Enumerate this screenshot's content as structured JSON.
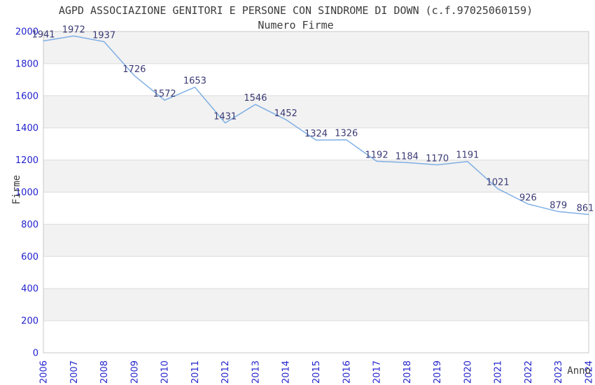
{
  "header": {
    "title": "AGPD ASSOCIAZIONE GENITORI E PERSONE CON SINDROME DI DOWN (c.f.97025060159)",
    "subtitle": "Numero Firme"
  },
  "chart_data": {
    "type": "line",
    "title": "AGPD ASSOCIAZIONE GENITORI E PERSONE CON SINDROME DI DOWN (c.f.97025060159)",
    "subtitle": "Numero Firme",
    "xlabel": "Anno",
    "ylabel": "Firme",
    "categories": [
      "2006",
      "2007",
      "2008",
      "2009",
      "2010",
      "2011",
      "2012",
      "2013",
      "2014",
      "2015",
      "2016",
      "2017",
      "2018",
      "2019",
      "2020",
      "2021",
      "2022",
      "2023",
      "2024"
    ],
    "series": [
      {
        "name": "Numero Firme",
        "values": [
          1941,
          1972,
          1937,
          1726,
          1572,
          1653,
          1431,
          1546,
          1452,
          1324,
          1326,
          1192,
          1184,
          1170,
          1191,
          1021,
          926,
          879,
          861
        ]
      }
    ],
    "ylim": [
      0,
      2000
    ],
    "yticks": [
      0,
      200,
      400,
      600,
      800,
      1000,
      1200,
      1400,
      1600,
      1800,
      2000
    ],
    "grid": "horizontal",
    "legend": "none",
    "point_labels": true,
    "x_tick_rotation": -90,
    "colors": {
      "line": "#7fafe4",
      "tick_label": "#2222cc",
      "data_label": "#3a3a75",
      "band_gray": "#f2f2f2",
      "band_white": "#ffffff",
      "gridline": "#dcdcdc",
      "plot_border": "#c8c8c8",
      "heading_text": "#3c3c3c"
    }
  }
}
